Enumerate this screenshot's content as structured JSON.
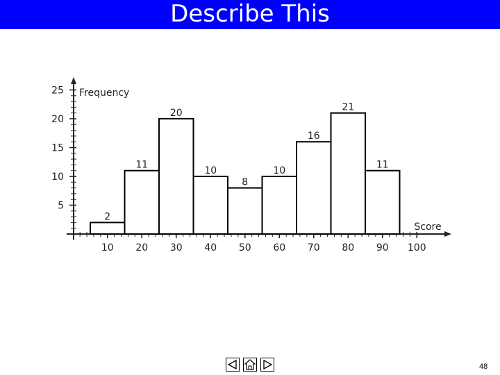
{
  "slide": {
    "title": "Describe This",
    "page_number": "48",
    "nav": [
      "previous-slide",
      "home",
      "next-slide"
    ]
  },
  "colors": {
    "title_bar": "#0000ff",
    "bar_fill": "#ffffff",
    "bar_stroke": "#000000"
  },
  "chart_data": {
    "type": "bar",
    "categories": [
      "10",
      "20",
      "30",
      "40",
      "50",
      "60",
      "70",
      "80",
      "90"
    ],
    "values": [
      2,
      11,
      20,
      10,
      8,
      10,
      16,
      21,
      11
    ],
    "x_ticks": [
      "10",
      "20",
      "30",
      "40",
      "50",
      "60",
      "70",
      "80",
      "90",
      "100"
    ],
    "y_ticks": [
      "5",
      "10",
      "15",
      "20",
      "25"
    ],
    "xlabel": "Score",
    "ylabel": "Frequency",
    "ylim": [
      0,
      25
    ],
    "data_labels": [
      "2",
      "11",
      "20",
      "10",
      "8",
      "10",
      "16",
      "21",
      "11"
    ]
  }
}
